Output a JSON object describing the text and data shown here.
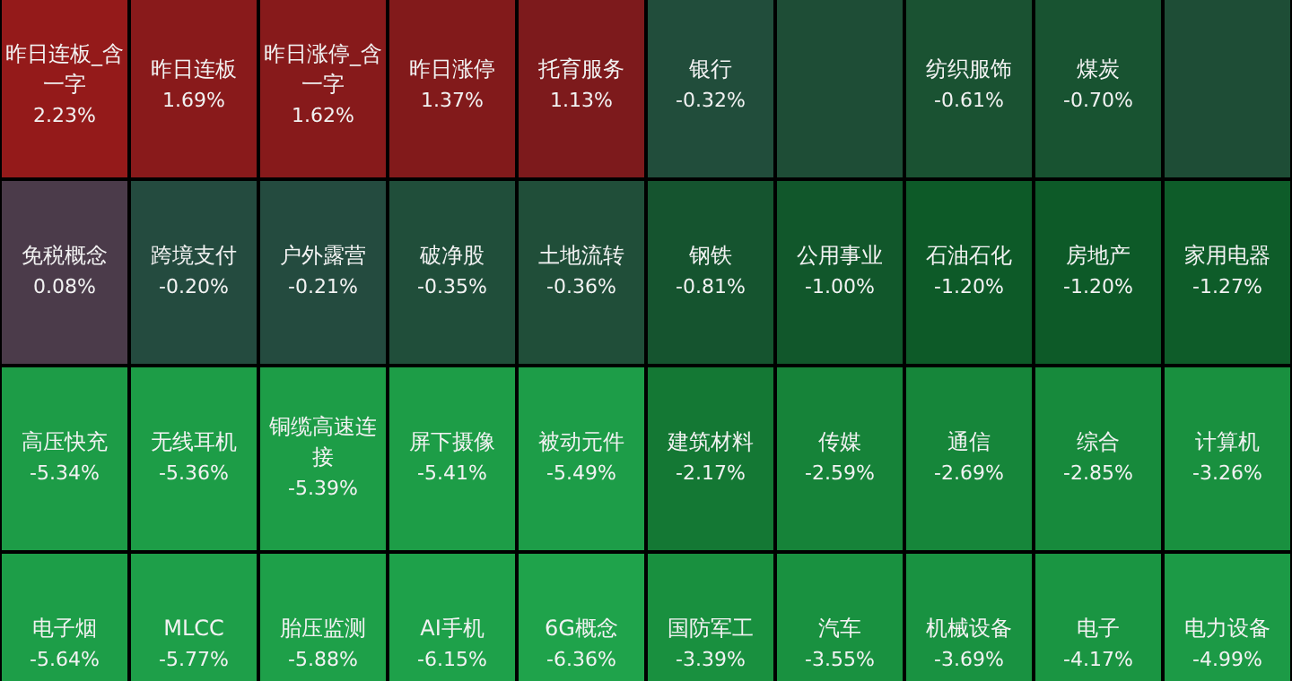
{
  "chart_data": {
    "type": "other",
    "categories": [
      "昨日连板_含一字",
      "昨日连板",
      "昨日涨停_含一字",
      "昨日涨停",
      "托育服务",
      "银行",
      null,
      "纺织服饰",
      "煤炭",
      null,
      "免税概念",
      "跨境支付",
      "户外露营",
      "破净股",
      "土地流转",
      "钢铁",
      "公用事业",
      "石油石化",
      "房地产",
      "家用电器",
      "高压快充",
      "无线耳机",
      "铜缆高速连接",
      "屏下摄像",
      "被动元件",
      "建筑材料",
      "传媒",
      "通信",
      "综合",
      "计算机",
      "电子烟",
      "MLCC",
      "胎压监测",
      "AI手机",
      "6G概念",
      "国防军工",
      "汽车",
      "机械设备",
      "电子",
      "电力设备"
    ],
    "values": [
      2.23,
      1.69,
      1.62,
      1.37,
      1.13,
      -0.32,
      null,
      -0.61,
      -0.7,
      null,
      0.08,
      -0.2,
      -0.21,
      -0.35,
      -0.36,
      -0.81,
      -1.0,
      -1.2,
      -1.2,
      -1.27,
      -5.34,
      -5.36,
      -5.39,
      -5.41,
      -5.49,
      -2.17,
      -2.59,
      -2.69,
      -2.85,
      -3.26,
      -5.64,
      -5.77,
      -5.88,
      -6.15,
      -6.36,
      -3.39,
      -3.55,
      -3.69,
      -4.17,
      -4.99
    ],
    "value_labels": [
      "2.23%",
      "1.69%",
      "1.62%",
      "1.37%",
      "1.13%",
      "-0.32%",
      null,
      "-0.61%",
      "-0.70%",
      null,
      "0.08%",
      "-0.20%",
      "-0.21%",
      "-0.35%",
      "-0.36%",
      "-0.81%",
      "-1.00%",
      "-1.20%",
      "-1.20%",
      "-1.27%",
      "-5.34%",
      "-5.36%",
      "-5.39%",
      "-5.41%",
      "-5.49%",
      "-2.17%",
      "-2.59%",
      "-2.69%",
      "-2.85%",
      "-3.26%",
      "-5.64%",
      "-5.77%",
      "-5.88%",
      "-6.15%",
      "-6.36%",
      "-3.39%",
      "-3.55%",
      "-3.69%",
      "-4.17%",
      "-4.99%"
    ]
  }
}
